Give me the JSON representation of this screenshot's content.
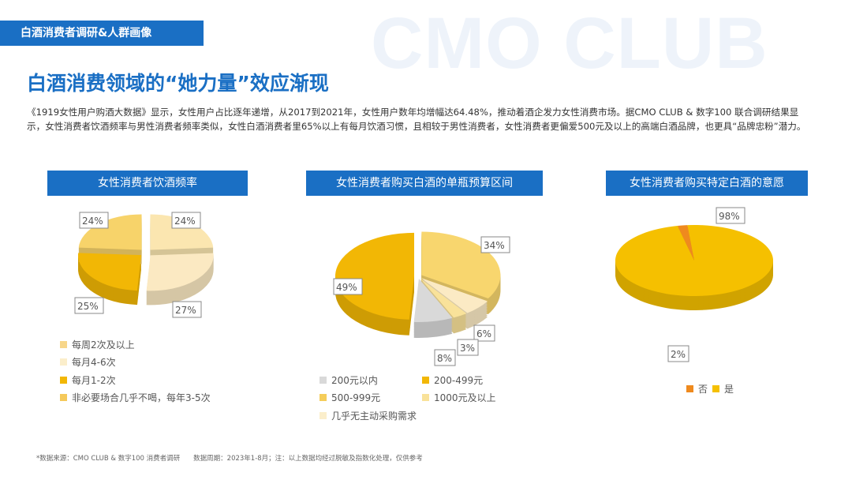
{
  "watermark": "CMO CLUB",
  "section_tag": "白酒消费者调研&人群画像",
  "title": "白酒消费领域的“她力量”效应渐现",
  "description": "《1919女性用户购酒大数据》显示，女性用户占比逐年递增，从2017到2021年，女性用户数年均增幅达64.48%，推动着酒企发力女性消费市场。据CMO CLUB & 数字100 联合调研结果显示，女性消费者饮酒频率与男性消费者频率类似，女性白酒消费者里65%以上有每月饮酒习惯，且相较于男性消费者，女性消费者更偏爱500元及以上的高端白酒品牌，也更具“品牌忠粉”潜力。",
  "footer": "*数据来源：CMO CLUB & 数字100 消费者调研　　数据周期：2023年1-8月；注：以上数据均经过脱敏及指数化处理，仅供参考",
  "chart_data": [
    {
      "type": "pie",
      "title": "女性消费者饮酒频率",
      "slices": [
        {
          "label": "每月4-6次",
          "value": 24,
          "display": "24%",
          "color": "#fbe6b0"
        },
        {
          "label": "每周2次及以上",
          "value": 27,
          "display": "27%",
          "color": "#fbe9c2"
        },
        {
          "label": "每月1-2次",
          "value": 25,
          "display": "25%",
          "color": "#f2b705"
        },
        {
          "label": "非必要场合几乎不喝，每年3-5次",
          "value": 24,
          "display": "24%",
          "color": "#f7d36a"
        }
      ],
      "legend": [
        {
          "label": "每周2次及以上",
          "color": "#f7d68a"
        },
        {
          "label": "每月4-6次",
          "color": "#fbeecb"
        },
        {
          "label": "每月1-2次",
          "color": "#f2b705"
        },
        {
          "label": "非必要场合几乎不喝，每年3-5次",
          "color": "#f5c95a"
        }
      ]
    },
    {
      "type": "pie",
      "title": "女性消费者购买白酒的单瓶预算区间",
      "slices": [
        {
          "label": "500-999元",
          "value": 34,
          "display": "34%",
          "color": "#f8d66e"
        },
        {
          "label": "几乎无主动采购需求",
          "value": 6,
          "display": "6%",
          "color": "#fbeac4"
        },
        {
          "label": "1000元及以上",
          "value": 3,
          "display": "3%",
          "color": "#f9e29a"
        },
        {
          "label": "200元以内",
          "value": 8,
          "display": "8%",
          "color": "#d9d9d9"
        },
        {
          "label": "200-499元",
          "value": 49,
          "display": "49%",
          "color": "#f2b705"
        }
      ],
      "legend": [
        {
          "label": "200元以内",
          "color": "#d9d9d9"
        },
        {
          "label": "200-499元",
          "color": "#f2b705"
        },
        {
          "label": "500-999元",
          "color": "#f5cd5a"
        },
        {
          "label": "1000元及以上",
          "color": "#f9e29a"
        },
        {
          "label": "几乎无主动采购需求",
          "color": "#fbeecb"
        }
      ]
    },
    {
      "type": "pie",
      "title": "女性消费者购买特定白酒的意愿",
      "slices": [
        {
          "label": "是",
          "value": 98,
          "display": "98%",
          "color": "#f5c000"
        },
        {
          "label": "否",
          "value": 2,
          "display": "2%",
          "color": "#ef8a1e"
        }
      ],
      "legend": [
        {
          "label": "否",
          "color": "#ef8a1e"
        },
        {
          "label": "是",
          "color": "#f5c000"
        }
      ]
    }
  ]
}
